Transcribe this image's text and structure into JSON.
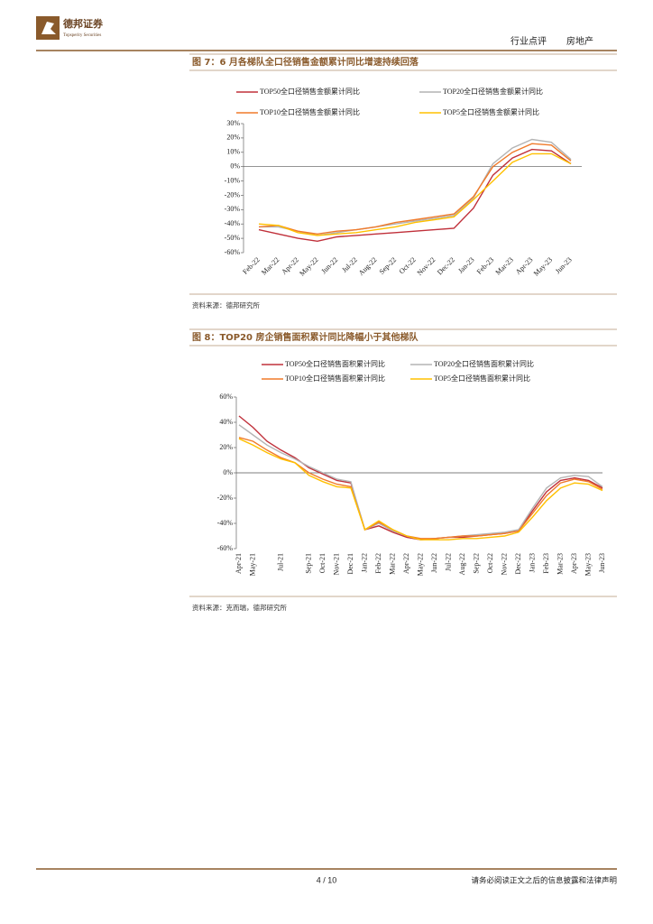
{
  "header": {
    "company": "德邦证券",
    "company_en": "Topsperity Securities",
    "section": "行业点评",
    "sector": "房地产"
  },
  "footer": {
    "page": "4 / 10",
    "disclaimer": "请务必阅读正文之后的信息披露和法律声明"
  },
  "chart_data": [
    {
      "type": "line",
      "title": "图 7：6 月各梯队全口径销售金额累计同比增速持续回落",
      "source": "资料来源：德邦研究所",
      "categories": [
        "Feb-22",
        "Mar-22",
        "Apr-22",
        "May-22",
        "Jun-22",
        "Jul-22",
        "Aug-22",
        "Sep-22",
        "Oct-22",
        "Nov-22",
        "Dec-22",
        "Jan-23",
        "Feb-23",
        "Mar-23",
        "Apr-23",
        "May-23",
        "Jun-23"
      ],
      "series": [
        {
          "name": "TOP50全口径销售金额累计同比",
          "color": "#c0303a",
          "values": [
            -44,
            -47,
            -50,
            -52,
            -49,
            -48,
            -47,
            -46,
            -45,
            -44,
            -43,
            -29,
            -6,
            6,
            12,
            11,
            2
          ]
        },
        {
          "name": "TOP20全口径销售金额累计同比",
          "color": "#b4b4b4",
          "values": [
            -42,
            -42,
            -45,
            -48,
            -46,
            -44,
            -42,
            -40,
            -38,
            -36,
            -34,
            -22,
            2,
            13,
            19,
            17,
            5
          ]
        },
        {
          "name": "TOP10全口径销售金额累计同比",
          "color": "#f07a2a",
          "values": [
            -42,
            -41,
            -45,
            -47,
            -45,
            -44,
            -42,
            -39,
            -37,
            -35,
            -33,
            -21,
            0,
            10,
            16,
            15,
            4
          ]
        },
        {
          "name": "TOP5全口径销售金额累计同比",
          "color": "#ffc000",
          "values": [
            -40,
            -41,
            -46,
            -48,
            -47,
            -46,
            -44,
            -42,
            -39,
            -37,
            -35,
            -23,
            -10,
            3,
            9,
            9,
            2
          ]
        }
      ],
      "ylim": [
        -60,
        30
      ],
      "yticks": [
        {
          "value": 30,
          "label": "30%"
        },
        {
          "value": 20,
          "label": "20%"
        },
        {
          "value": 10,
          "label": "10%"
        },
        {
          "value": 0,
          "label": "0%"
        },
        {
          "value": -10,
          "label": "-10%"
        },
        {
          "value": -20,
          "label": "-20%"
        },
        {
          "value": -30,
          "label": "-30%"
        },
        {
          "value": -40,
          "label": "-40%"
        },
        {
          "value": -50,
          "label": "-50%"
        },
        {
          "value": -60,
          "label": "-60%"
        }
      ],
      "grid": false
    },
    {
      "type": "line",
      "title": "图 8：TOP20 房企销售面积累计同比降幅小于其他梯队",
      "source": "资料来源：克而瑞，德邦研究所",
      "categories": [
        "Apr-21",
        "May-21",
        null,
        "Jul-21",
        null,
        "Sep-21",
        "Oct-21",
        "Nov-21",
        "Dec-21",
        "Jan-22",
        "Feb-22",
        "Mar-22",
        "Apr-22",
        "May-22",
        "Jun-22",
        "Jul-22",
        "Aug-22",
        "Sep-22",
        "Oct-22",
        "Nov-22",
        "Dec-22",
        "Jan-23",
        "Feb-23",
        "Mar-23",
        "Apr-23",
        "May-23",
        "Jun-23"
      ],
      "series": [
        {
          "name": "TOP50全口径销售面积累计同比",
          "color": "#c0303a",
          "values": [
            45,
            36,
            25,
            18,
            12,
            4,
            -1,
            -6,
            -8,
            -45,
            -42,
            -47,
            -51,
            -53,
            -52,
            -51,
            -51,
            -50,
            -49,
            -48,
            -46,
            -30,
            -15,
            -6,
            -4,
            -6,
            -12
          ]
        },
        {
          "name": "TOP20全口径销售面积累计同比",
          "color": "#b4b4b4",
          "values": [
            38,
            30,
            22,
            16,
            11,
            5,
            0,
            -5,
            -7,
            -45,
            -40,
            -46,
            -50,
            -53,
            -52,
            -51,
            -50,
            -49,
            -48,
            -47,
            -45,
            -28,
            -12,
            -4,
            -2,
            -3,
            -11
          ]
        },
        {
          "name": "TOP10全口径销售面积累计同比",
          "color": "#f07a2a",
          "values": [
            28,
            25,
            18,
            12,
            8,
            0,
            -5,
            -9,
            -11,
            -45,
            -39,
            -45,
            -50,
            -52,
            -52,
            -51,
            -50,
            -50,
            -49,
            -48,
            -46,
            -32,
            -18,
            -8,
            -5,
            -7,
            -13
          ]
        },
        {
          "name": "TOP5全口径销售面积累计同比",
          "color": "#ffc000",
          "values": [
            27,
            22,
            16,
            11,
            8,
            -2,
            -7,
            -11,
            -12,
            -45,
            -38,
            -45,
            -50,
            -53,
            -53,
            -53,
            -52,
            -52,
            -51,
            -50,
            -47,
            -35,
            -22,
            -12,
            -8,
            -9,
            -14
          ]
        }
      ],
      "ylim": [
        -60,
        60
      ],
      "yticks": [
        {
          "value": 60,
          "label": "60%"
        },
        {
          "value": 40,
          "label": "40%"
        },
        {
          "value": 20,
          "label": "20%"
        },
        {
          "value": 0,
          "label": "0%"
        },
        {
          "value": -20,
          "label": "-20%"
        },
        {
          "value": -40,
          "label": "-40%"
        },
        {
          "value": -60,
          "label": "-60%"
        }
      ],
      "grid": false
    }
  ]
}
